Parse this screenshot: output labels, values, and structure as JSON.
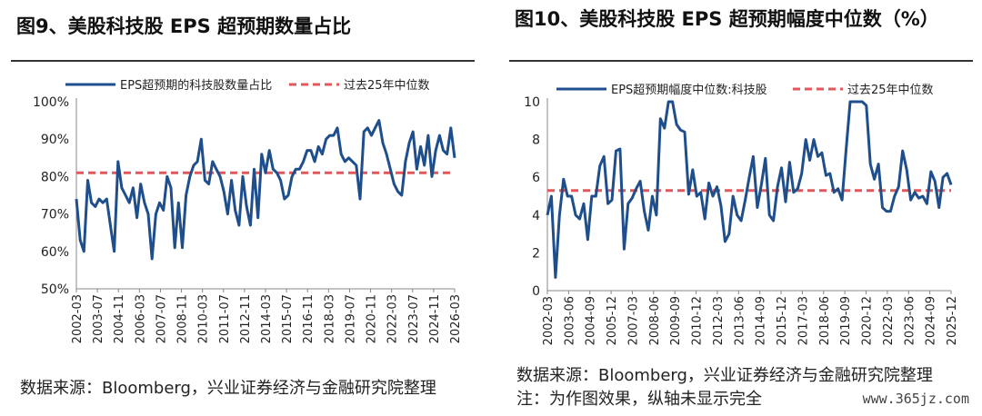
{
  "watermark": "www.365jz.com",
  "charts": [
    {
      "title": "图9、美股科技股 EPS 超预期数量占比",
      "source": "数据来源：Bloomberg，兴业证券经济与金融研究院整理",
      "chart_data": {
        "type": "line",
        "ylim": [
          50,
          100
        ],
        "yticks": [
          "50%",
          "60%",
          "70%",
          "80%",
          "90%",
          "100%"
        ],
        "ytick_values": [
          50,
          60,
          70,
          80,
          90,
          100
        ],
        "x_tick_labels": [
          "2002-03",
          "2003-07",
          "2004-11",
          "2006-03",
          "2007-07",
          "2008-11",
          "2010-03",
          "2011-07",
          "2012-11",
          "2014-03",
          "2015-07",
          "2016-11",
          "2018-03",
          "2019-07",
          "2020-11",
          "2022-03",
          "2023-07",
          "2024-11",
          "2026-03"
        ],
        "legend_placement": "top",
        "series": [
          {
            "name": "EPS超预期的科技股数量占比",
            "color": "#1f4e8c",
            "style": "solid",
            "values": [
              74,
              63,
              60,
              79,
              73,
              72,
              74,
              73,
              74,
              67,
              60,
              84,
              77,
              75,
              73,
              77,
              69,
              78,
              73,
              70,
              58,
              70,
              73,
              71,
              80,
              77,
              61,
              73,
              61,
              75,
              80,
              83,
              84,
              90,
              79,
              78,
              84,
              82,
              80,
              76,
              70,
              79,
              71,
              67,
              80,
              72,
              67,
              82,
              69,
              86,
              81,
              87,
              82,
              81,
              79,
              74,
              75,
              80,
              82,
              82,
              84,
              87,
              87,
              84,
              88,
              86,
              90,
              91,
              91,
              93,
              86,
              84,
              85,
              84,
              83,
              74,
              92,
              93,
              91,
              93,
              95,
              89,
              86,
              82,
              78,
              76,
              75,
              84,
              89,
              92,
              82,
              88,
              83,
              91,
              80,
              87,
              91,
              87,
              86,
              93,
              85
            ]
          },
          {
            "name": "过去25年中位数",
            "color": "#e0585b",
            "style": "dashed",
            "value": 81
          }
        ]
      }
    },
    {
      "title": "图10、美股科技股 EPS 超预期幅度中位数（%）",
      "source": "数据来源：Bloomberg，兴业证券经济与金融研究院整理",
      "note": "注：为作图效果，纵轴未显示完全",
      "chart_data": {
        "type": "line",
        "ylim": [
          0,
          10
        ],
        "yticks": [
          "0",
          "2",
          "4",
          "6",
          "8",
          "10"
        ],
        "ytick_values": [
          0,
          2,
          4,
          6,
          8,
          10
        ],
        "x_tick_labels": [
          "2002-03",
          "2003-06",
          "2004-09",
          "2005-12",
          "2007-03",
          "2008-06",
          "2009-09",
          "2010-12",
          "2012-03",
          "2013-06",
          "2014-09",
          "2015-12",
          "2017-03",
          "2018-06",
          "2019-09",
          "2020-12",
          "2022-03",
          "2023-06",
          "2024-09",
          "2025-12"
        ],
        "legend_placement": "top",
        "series": [
          {
            "name": "EPS超预期幅度中位数:科技股",
            "color": "#1f4e8c",
            "style": "solid",
            "values": [
              4.0,
              5.0,
              0.7,
              4.0,
              5.9,
              5.0,
              5.0,
              4.0,
              3.8,
              4.6,
              2.7,
              5.0,
              5.0,
              6.6,
              7.1,
              4.6,
              4.8,
              7.4,
              7.5,
              2.2,
              4.6,
              4.9,
              5.4,
              5.8,
              4.2,
              3.2,
              5.0,
              4.0,
              9.1,
              8.6,
              10.5,
              10.5,
              8.8,
              8.5,
              8.4,
              5.1,
              6.4,
              5.0,
              5.2,
              3.8,
              5.7,
              5.0,
              5.5,
              4.5,
              2.6,
              3.0,
              5.0,
              4.0,
              3.7,
              4.8,
              6.0,
              7.1,
              4.4,
              5.6,
              7.0,
              4.0,
              3.7,
              5.5,
              6.5,
              4.7,
              6.8,
              5.2,
              5.4,
              6.2,
              8.0,
              6.9,
              8.0,
              7.1,
              7.3,
              6.1,
              6.2,
              5.2,
              5.4,
              4.8,
              7.5,
              10.5,
              10.5,
              10.5,
              10.5,
              9.8,
              6.7,
              5.9,
              6.7,
              4.4,
              4.2,
              4.2,
              5.0,
              5.5,
              7.4,
              6.4,
              4.8,
              5.2,
              4.9,
              5.0,
              4.6,
              6.3,
              5.8,
              4.4,
              6.0,
              6.2,
              5.6
            ]
          },
          {
            "name": "过去25年中位数",
            "color": "#e0585b",
            "style": "dashed",
            "value": 5.3
          }
        ]
      }
    }
  ]
}
